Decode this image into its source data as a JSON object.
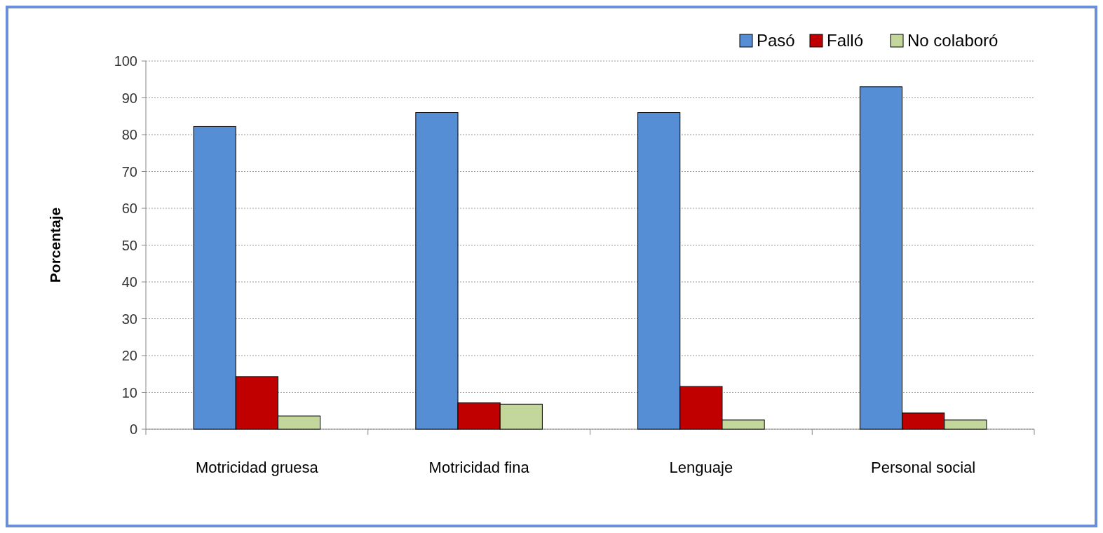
{
  "chart_data": {
    "type": "bar",
    "ylabel": "Porcentaje",
    "categories": [
      "Motricidad gruesa",
      "Motricidad fina",
      "Lenguaje",
      "Personal social"
    ],
    "series": [
      {
        "name": "Pasó",
        "color": "#558ed5",
        "values": [
          82.2,
          86,
          86,
          93
        ]
      },
      {
        "name": "Falló",
        "color": "#c00000",
        "values": [
          14.3,
          7.2,
          11.6,
          4.4
        ]
      },
      {
        "name": "No colaboró",
        "color": "#c3d69b",
        "values": [
          3.6,
          6.8,
          2.5,
          2.5
        ]
      }
    ],
    "ylim": [
      0,
      100
    ],
    "yticks": [
      0,
      10,
      20,
      30,
      40,
      50,
      60,
      70,
      80,
      90,
      100
    ],
    "grid": "y",
    "legend": "top right"
  }
}
